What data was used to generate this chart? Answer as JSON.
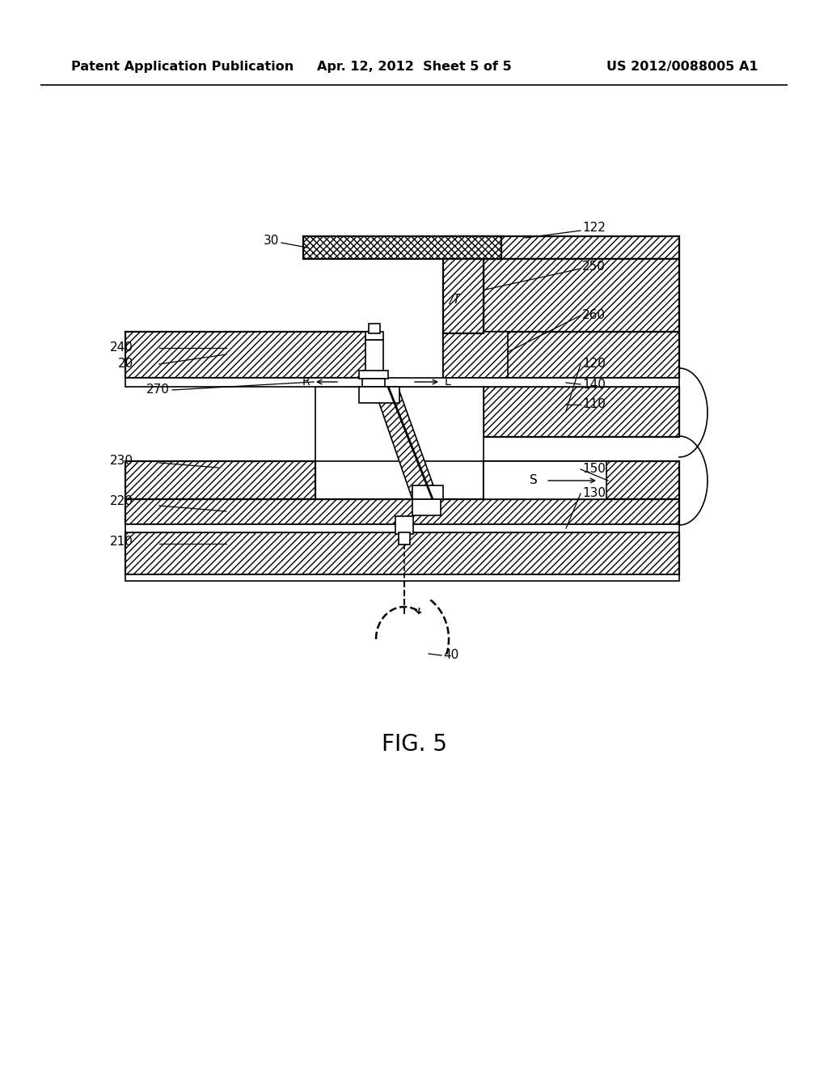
{
  "header_left": "Patent Application Publication",
  "header_center": "Apr. 12, 2012  Sheet 5 of 5",
  "header_right": "US 2012/0088005 A1",
  "fig_caption": "FIG. 5",
  "bg_color": "#ffffff"
}
